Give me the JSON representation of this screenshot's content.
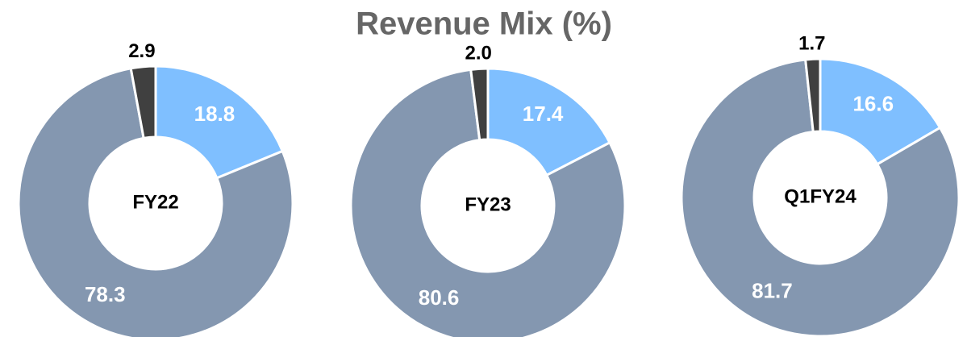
{
  "title": "Revenue Mix (%)",
  "chart_data": [
    {
      "type": "pie",
      "center_label": "FY22",
      "values": [
        18.8,
        78.3,
        2.9
      ],
      "value_labels": [
        "18.8",
        "78.3",
        "2.9"
      ],
      "colors": [
        "#7fbfff",
        "#8497b0",
        "#404040"
      ]
    },
    {
      "type": "pie",
      "center_label": "FY23",
      "values": [
        17.4,
        80.6,
        2
      ],
      "value_labels": [
        "17.4",
        "80.6",
        "2.0"
      ],
      "colors": [
        "#7fbfff",
        "#8497b0",
        "#404040"
      ]
    },
    {
      "type": "pie",
      "center_label": "Q1FY24",
      "values": [
        16.6,
        81.7,
        1.7
      ],
      "value_labels": [
        "16.6",
        "81.7",
        "1.7"
      ],
      "colors": [
        "#7fbfff",
        "#8497b0",
        "#404040"
      ]
    }
  ]
}
